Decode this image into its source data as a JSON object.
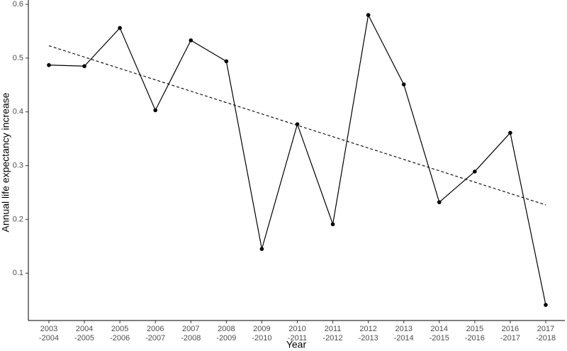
{
  "chart_data": {
    "type": "line",
    "x_label": "Year",
    "y_label": "Annual life expectancy increase",
    "categories": [
      [
        "2003",
        "-2004"
      ],
      [
        "2004",
        "-2005"
      ],
      [
        "2005",
        "-2006"
      ],
      [
        "2006",
        "-2007"
      ],
      [
        "2007",
        "-2008"
      ],
      [
        "2008",
        "-2009"
      ],
      [
        "2009",
        "-2010"
      ],
      [
        "2010",
        "-2011"
      ],
      [
        "2011",
        "-2012"
      ],
      [
        "2012",
        "-2013"
      ],
      [
        "2013",
        "-2014"
      ],
      [
        "2014",
        "-2015"
      ],
      [
        "2015",
        "-2016"
      ],
      [
        "2016",
        "-2017"
      ],
      [
        "2017",
        "-2018"
      ]
    ],
    "values": [
      0.487,
      0.485,
      0.556,
      0.403,
      0.533,
      0.494,
      0.145,
      0.377,
      0.191,
      0.58,
      0.451,
      0.232,
      0.289,
      0.361,
      0.041
    ],
    "color": "#000000",
    "trend_line": [
      0.523,
      0.227
    ],
    "ylim": [
      0.012,
      0.608
    ],
    "yticks": [
      0.1,
      0.2,
      0.3,
      0.4,
      0.5,
      0.6
    ],
    "grid": false
  }
}
